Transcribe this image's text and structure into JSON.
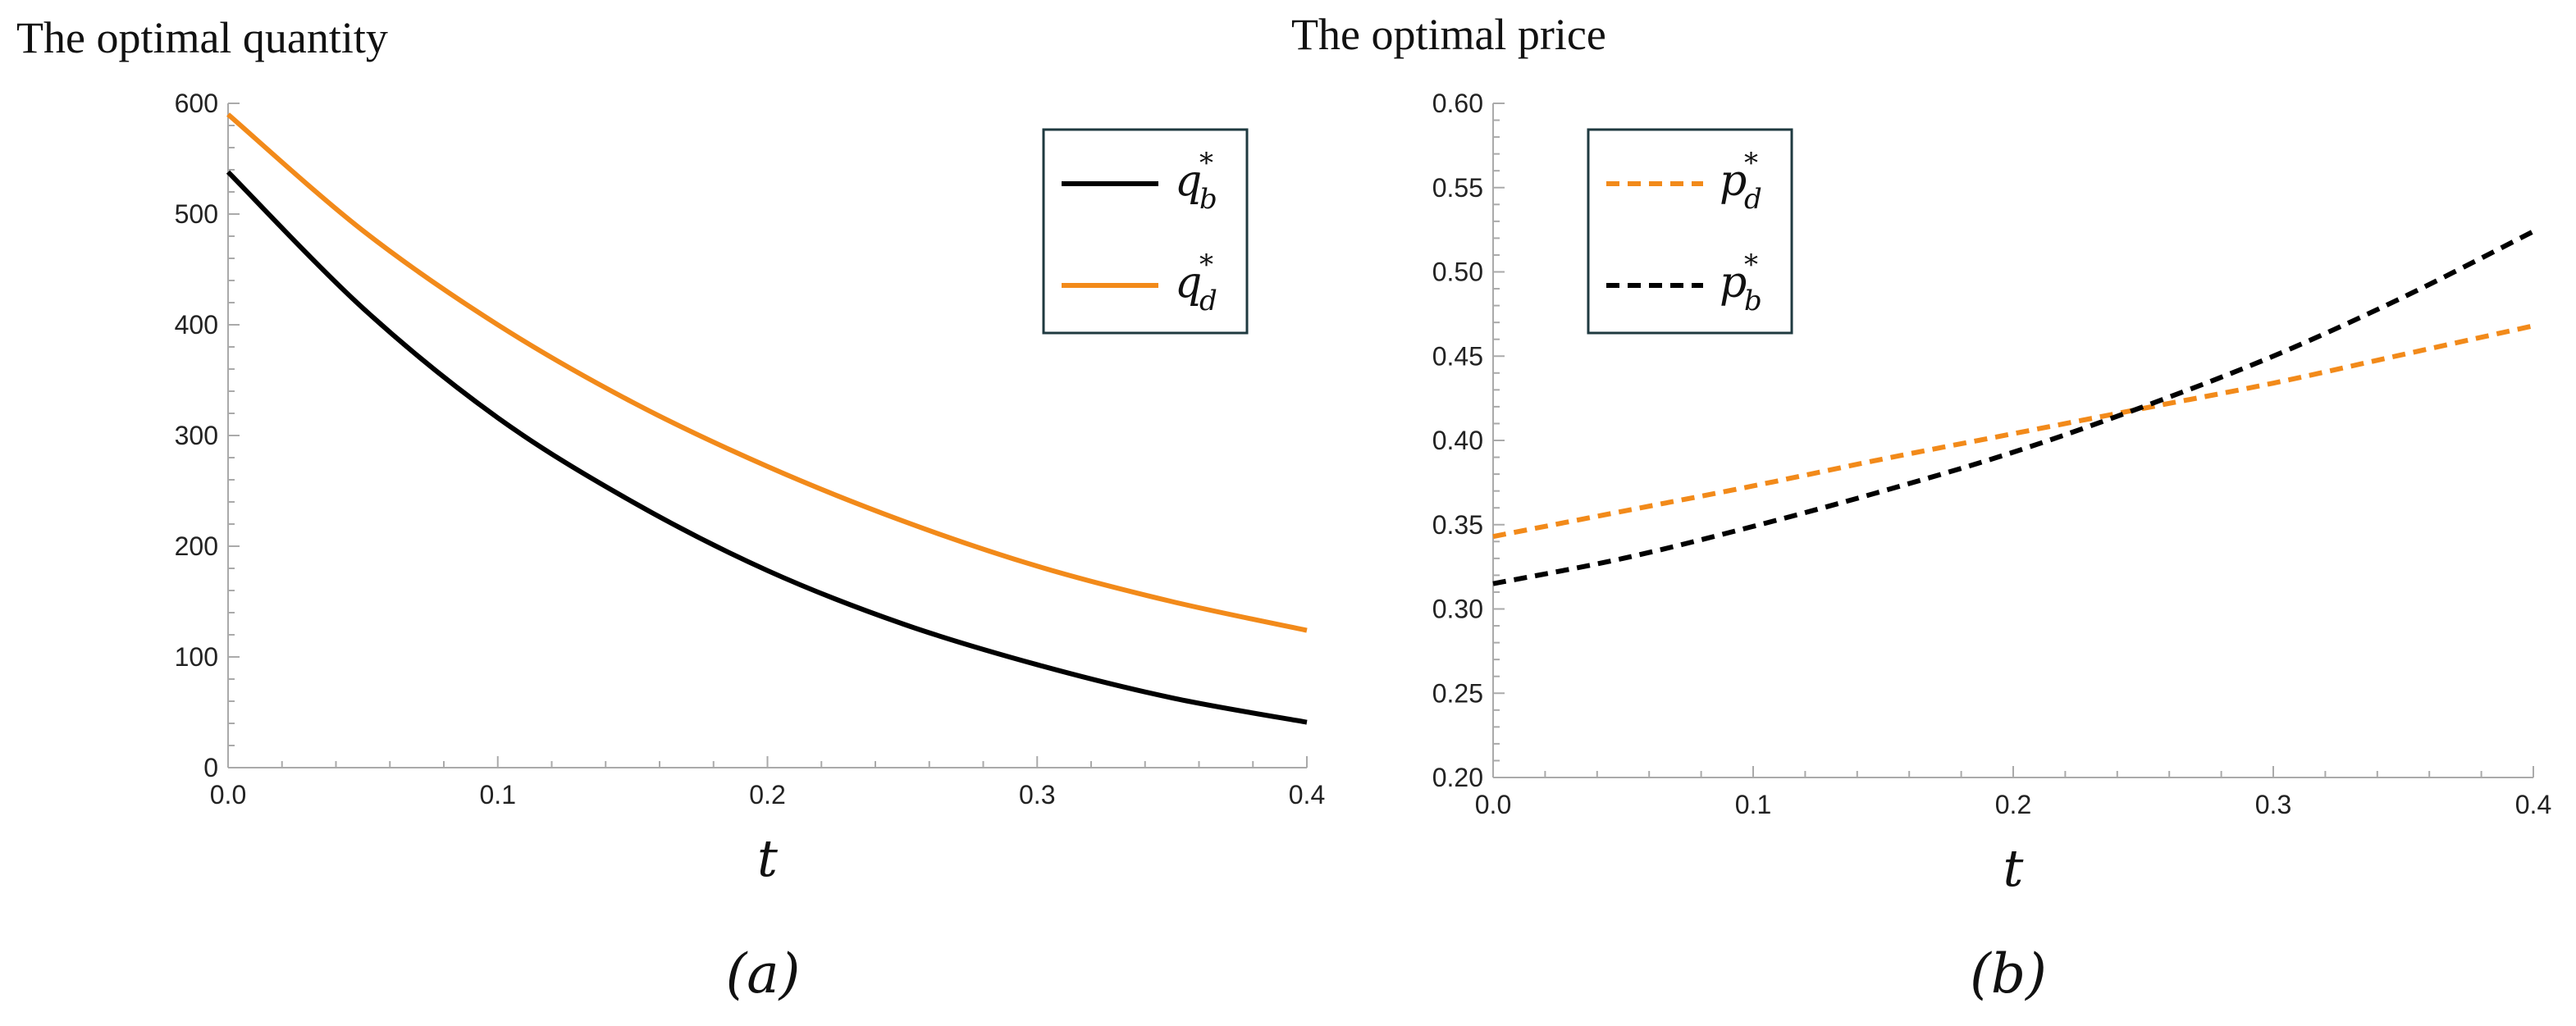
{
  "chart_data": [
    {
      "type": "line",
      "title": "The optimal quantity",
      "xlabel": "t",
      "ylabel": "",
      "caption": "(a)",
      "xlim": [
        0,
        0.4
      ],
      "ylim": [
        0,
        600
      ],
      "xticks": [
        "0.0",
        "0.1",
        "0.2",
        "0.3",
        "0.4"
      ],
      "yticks": [
        "0",
        "100",
        "200",
        "300",
        "400",
        "500",
        "600"
      ],
      "x": [
        0,
        0.05,
        0.1,
        0.15,
        0.2,
        0.25,
        0.3,
        0.35,
        0.4
      ],
      "series": [
        {
          "name": "q_b^*",
          "symbol": "q",
          "sub": "b",
          "sup": "*",
          "color": "#000000",
          "dash": "solid",
          "values": [
            538,
            415,
            316,
            240,
            178,
            130,
            93,
            63,
            41
          ]
        },
        {
          "name": "q_d^*",
          "symbol": "q",
          "sub": "d",
          "sup": "*",
          "color": "#F28A1A",
          "dash": "solid",
          "values": [
            590,
            485,
            400,
            330,
            272,
            223,
            182,
            150,
            124
          ]
        }
      ],
      "legend_position": "top-right"
    },
    {
      "type": "line",
      "title": "The optimal price",
      "xlabel": "t",
      "ylabel": "",
      "caption": "(b)",
      "xlim": [
        0,
        0.4
      ],
      "ylim": [
        0.2,
        0.6
      ],
      "xticks": [
        "0.0",
        "0.1",
        "0.2",
        "0.3",
        "0.4"
      ],
      "yticks": [
        "0.20",
        "0.25",
        "0.30",
        "0.35",
        "0.40",
        "0.45",
        "0.50",
        "0.55",
        "0.60"
      ],
      "x": [
        0,
        0.05,
        0.1,
        0.15,
        0.2,
        0.25,
        0.3,
        0.35,
        0.4
      ],
      "series": [
        {
          "name": "p_d^*",
          "symbol": "p",
          "sub": "d",
          "sup": "*",
          "color": "#F28A1A",
          "dash": "dashed",
          "values": [
            0.343,
            0.358,
            0.373,
            0.389,
            0.404,
            0.419,
            0.434,
            0.451,
            0.468
          ]
        },
        {
          "name": "p_b^*",
          "symbol": "p",
          "sub": "b",
          "sup": "*",
          "color": "#000000",
          "dash": "dashed",
          "values": [
            0.315,
            0.33,
            0.349,
            0.37,
            0.393,
            0.42,
            0.45,
            0.485,
            0.524
          ]
        }
      ],
      "legend_position": "top-left"
    }
  ]
}
